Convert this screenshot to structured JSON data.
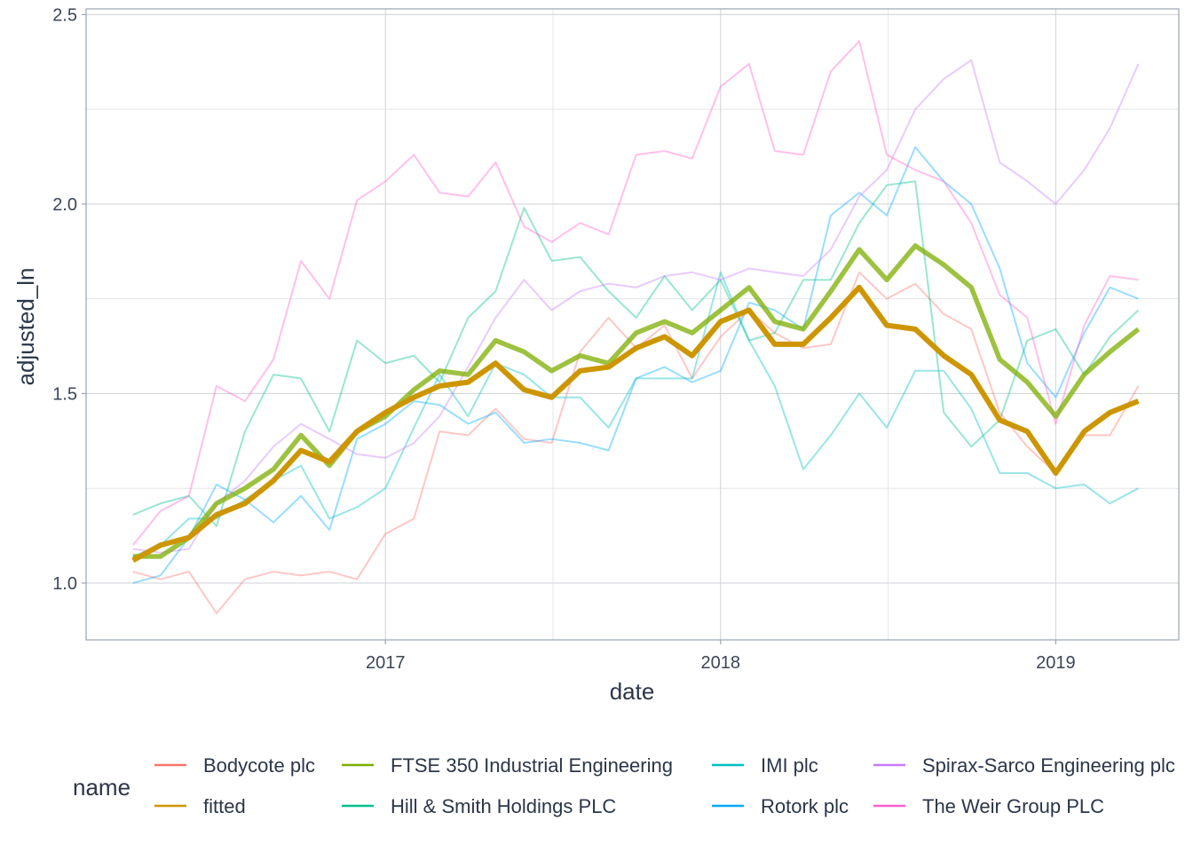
{
  "chart_data": {
    "type": "line",
    "xlabel": "date",
    "ylabel": "adjusted_ln",
    "ylim": [
      0.85,
      2.515
    ],
    "xlim": [
      "2016-02-10",
      "2019-05-15"
    ],
    "grid": true,
    "yticks": [
      1.0,
      1.5,
      2.0,
      2.5
    ],
    "ytick_labels": [
      "1.0",
      "1.5",
      "2.0",
      "2.5"
    ],
    "xticks": [
      "2017-01-01",
      "2018-01-01",
      "2019-01-01"
    ],
    "xtick_labels": [
      "2017",
      "2018",
      "2019"
    ],
    "legend_title": "name",
    "legend_position": "bottom",
    "legend_order": [
      "Bodycote plc",
      "fitted",
      "FTSE 350 Industrial Engineering",
      "Hill & Smith Holdings PLC",
      "IMI plc",
      "Rotork plc",
      "Spirax-Sarco Engineering plc",
      "The Weir Group PLC"
    ],
    "x": [
      "2016-04-01",
      "2016-05-01",
      "2016-06-01",
      "2016-07-01",
      "2016-08-01",
      "2016-09-01",
      "2016-10-01",
      "2016-11-01",
      "2016-12-01",
      "2017-01-01",
      "2017-02-01",
      "2017-03-01",
      "2017-04-01",
      "2017-05-01",
      "2017-06-01",
      "2017-07-01",
      "2017-08-01",
      "2017-09-01",
      "2017-10-01",
      "2017-11-01",
      "2017-12-01",
      "2018-01-01",
      "2018-02-01",
      "2018-03-01",
      "2018-04-01",
      "2018-05-01",
      "2018-06-01",
      "2018-07-01",
      "2018-08-01",
      "2018-09-01",
      "2018-10-01",
      "2018-11-01",
      "2018-12-01",
      "2019-01-01",
      "2019-02-01",
      "2019-03-01",
      "2019-04-01"
    ],
    "series": [
      {
        "name": "Bodycote plc",
        "color": "#f8766d",
        "width": 2,
        "opacity": 0.4,
        "values": [
          1.03,
          1.01,
          1.03,
          0.92,
          1.01,
          1.03,
          1.02,
          1.03,
          1.01,
          1.13,
          1.17,
          1.4,
          1.39,
          1.46,
          1.38,
          1.37,
          1.61,
          1.7,
          1.62,
          1.68,
          1.54,
          1.65,
          1.72,
          1.66,
          1.62,
          1.63,
          1.82,
          1.75,
          1.79,
          1.71,
          1.67,
          1.45,
          1.36,
          1.29,
          1.39,
          1.39,
          1.52
        ]
      },
      {
        "name": "Hill & Smith Holdings PLC",
        "color": "#00c08b",
        "width": 2,
        "opacity": 0.4,
        "values": [
          1.18,
          1.21,
          1.23,
          1.15,
          1.4,
          1.55,
          1.54,
          1.4,
          1.64,
          1.58,
          1.6,
          1.53,
          1.7,
          1.77,
          1.99,
          1.85,
          1.86,
          1.77,
          1.7,
          1.81,
          1.72,
          1.8,
          1.64,
          1.66,
          1.8,
          1.8,
          1.95,
          2.05,
          2.06,
          1.45,
          1.36,
          1.43,
          1.64,
          1.67,
          1.55,
          1.65,
          1.72
        ]
      },
      {
        "name": "IMI plc",
        "color": "#00bfc4",
        "width": 2,
        "opacity": 0.4,
        "values": [
          1.07,
          1.1,
          1.17,
          1.17,
          1.22,
          1.27,
          1.31,
          1.17,
          1.2,
          1.25,
          1.41,
          1.55,
          1.44,
          1.58,
          1.55,
          1.49,
          1.49,
          1.41,
          1.54,
          1.54,
          1.54,
          1.82,
          1.64,
          1.52,
          1.3,
          1.39,
          1.5,
          1.41,
          1.56,
          1.56,
          1.46,
          1.29,
          1.29,
          1.25,
          1.26,
          1.21,
          1.25
        ]
      },
      {
        "name": "Rotork plc",
        "color": "#00a9ff",
        "width": 2,
        "opacity": 0.4,
        "values": [
          1.0,
          1.02,
          1.12,
          1.26,
          1.22,
          1.16,
          1.23,
          1.14,
          1.38,
          1.42,
          1.48,
          1.47,
          1.42,
          1.45,
          1.37,
          1.38,
          1.37,
          1.35,
          1.54,
          1.57,
          1.53,
          1.56,
          1.74,
          1.72,
          1.67,
          1.97,
          2.03,
          1.97,
          2.15,
          2.06,
          2.0,
          1.83,
          1.58,
          1.49,
          1.66,
          1.78,
          1.75
        ]
      },
      {
        "name": "Spirax-Sarco Engineering plc",
        "color": "#c77cff",
        "width": 2,
        "opacity": 0.4,
        "values": [
          1.09,
          1.08,
          1.09,
          1.21,
          1.27,
          1.36,
          1.42,
          1.38,
          1.34,
          1.33,
          1.37,
          1.44,
          1.57,
          1.7,
          1.8,
          1.72,
          1.77,
          1.79,
          1.78,
          1.81,
          1.82,
          1.8,
          1.83,
          1.82,
          1.81,
          1.88,
          2.02,
          2.09,
          2.25,
          2.33,
          2.38,
          2.11,
          2.06,
          2.0,
          2.09,
          2.2,
          2.37
        ]
      },
      {
        "name": "The Weir Group PLC",
        "color": "#ff61cc",
        "width": 2,
        "opacity": 0.4,
        "values": [
          1.1,
          1.19,
          1.23,
          1.52,
          1.48,
          1.59,
          1.85,
          1.75,
          2.01,
          2.06,
          2.13,
          2.03,
          2.02,
          2.11,
          1.94,
          1.9,
          1.95,
          1.92,
          2.13,
          2.14,
          2.12,
          2.31,
          2.37,
          2.14,
          2.13,
          2.35,
          2.43,
          2.13,
          2.09,
          2.06,
          1.95,
          1.76,
          1.7,
          1.42,
          1.68,
          1.81,
          1.8
        ]
      },
      {
        "name": "FTSE 350 Industrial Engineering",
        "color": "#7cae00",
        "width": 5.5,
        "opacity": 0.75,
        "values": [
          1.07,
          1.07,
          1.12,
          1.21,
          1.25,
          1.3,
          1.39,
          1.31,
          1.4,
          1.44,
          1.51,
          1.56,
          1.55,
          1.64,
          1.61,
          1.56,
          1.6,
          1.58,
          1.66,
          1.69,
          1.66,
          1.72,
          1.78,
          1.69,
          1.67,
          1.77,
          1.88,
          1.8,
          1.89,
          1.84,
          1.78,
          1.59,
          1.53,
          1.44,
          1.55,
          1.61,
          1.67
        ]
      },
      {
        "name": "fitted",
        "color": "#cd9600",
        "width": 6,
        "opacity": 1.0,
        "values": [
          1.06,
          1.1,
          1.12,
          1.18,
          1.21,
          1.27,
          1.35,
          1.32,
          1.4,
          1.45,
          1.49,
          1.52,
          1.53,
          1.58,
          1.51,
          1.49,
          1.56,
          1.57,
          1.62,
          1.65,
          1.6,
          1.69,
          1.72,
          1.63,
          1.63,
          1.7,
          1.78,
          1.68,
          1.67,
          1.6,
          1.55,
          1.43,
          1.4,
          1.29,
          1.4,
          1.45,
          1.48
        ]
      }
    ]
  }
}
